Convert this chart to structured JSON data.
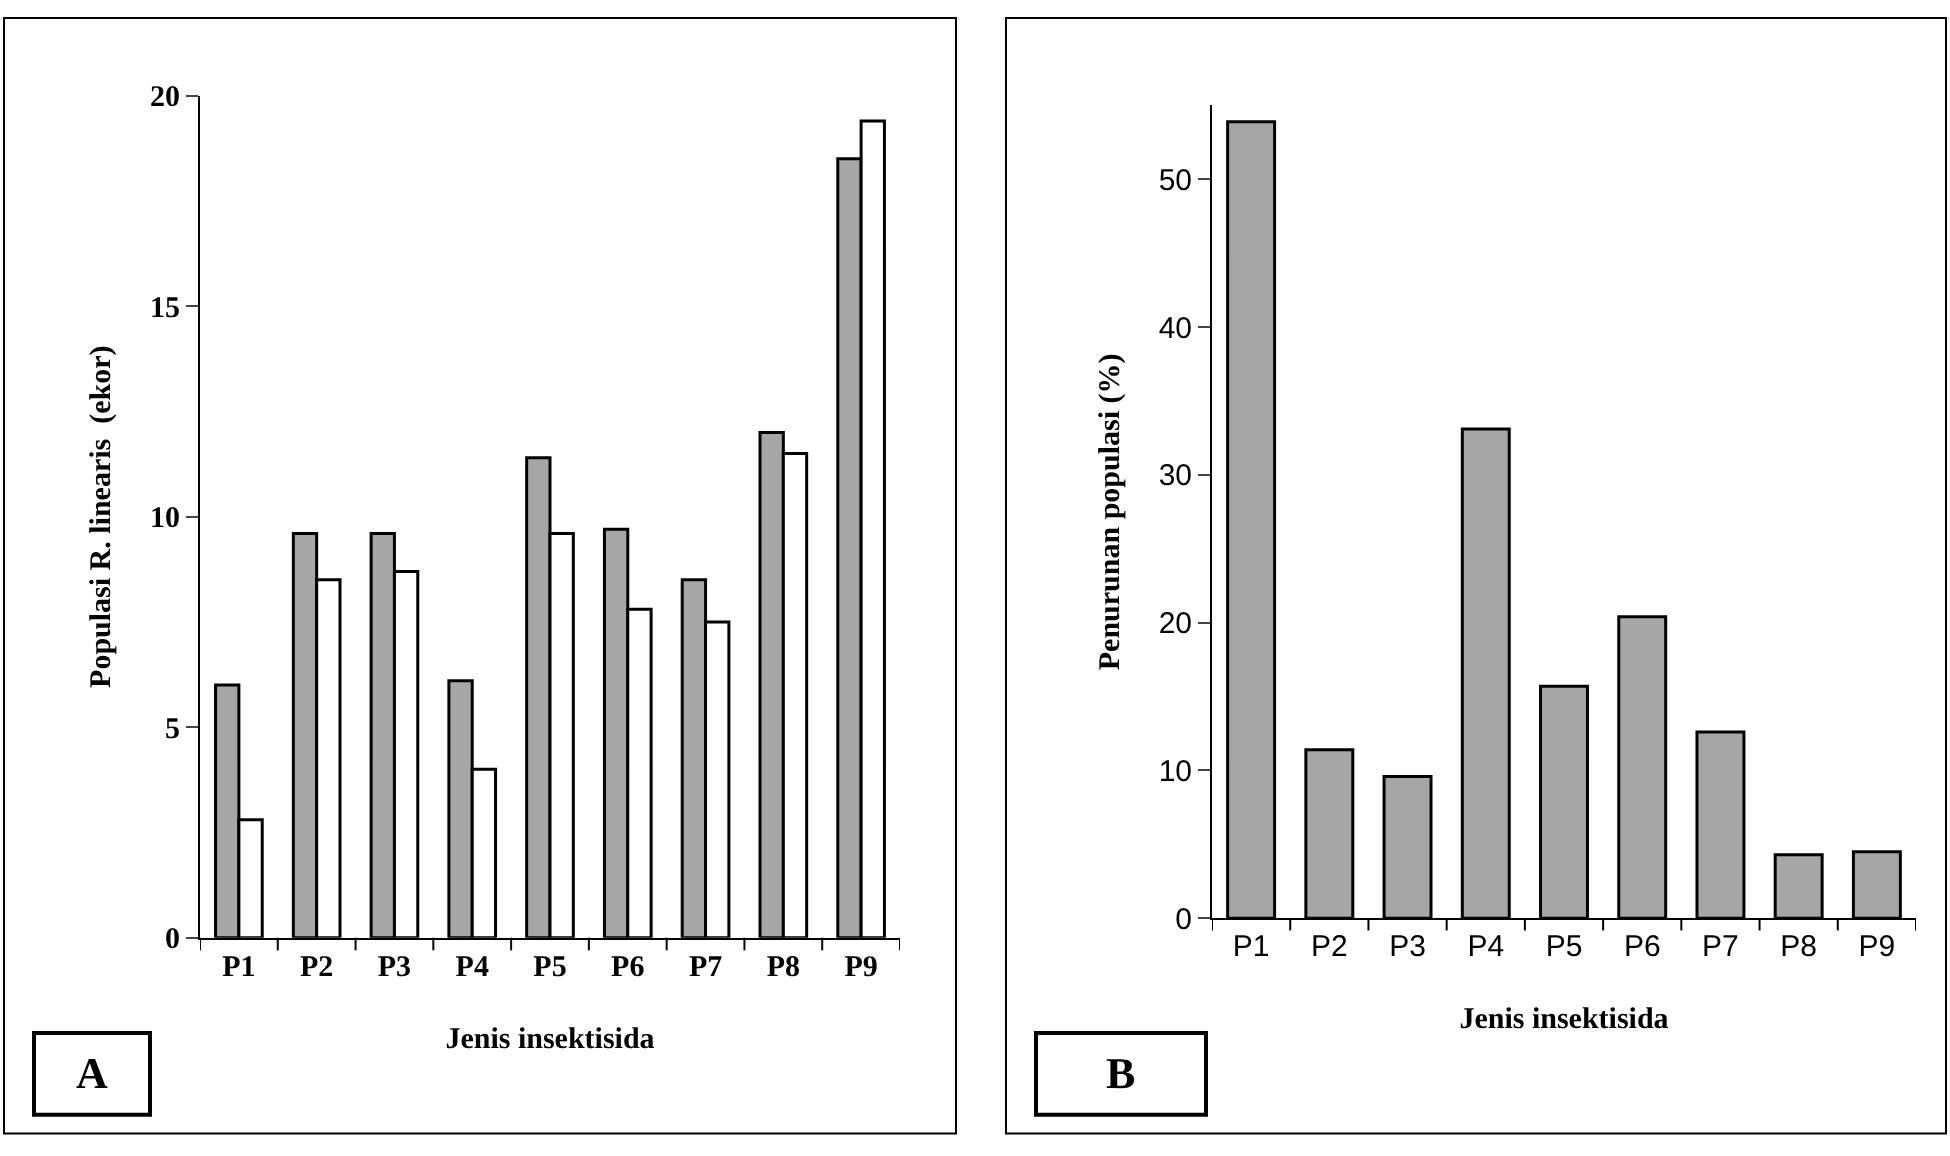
{
  "chart_data": [
    {
      "type": "bar",
      "xlabel": "Jenis insektisida",
      "ylabel": "Populasi R. linearis  (ekor)",
      "annotations": [
        "A"
      ],
      "categories": [
        "P1",
        "P2",
        "P3",
        "P4",
        "P5",
        "P6",
        "P7",
        "P8",
        "P9"
      ],
      "series": [
        {
          "color": "#a6a6a6",
          "values": [
            6.0,
            9.6,
            9.6,
            6.1,
            11.4,
            9.7,
            8.5,
            12.0,
            18.5
          ]
        },
        {
          "color": "#ffffff",
          "values": [
            2.8,
            8.5,
            8.7,
            4.0,
            9.6,
            7.8,
            7.5,
            11.5,
            19.4
          ]
        }
      ],
      "ylim": [
        0,
        20
      ],
      "yticks": [
        0,
        5,
        10,
        15,
        20
      ]
    },
    {
      "type": "bar",
      "xlabel": "Jenis insektisida",
      "ylabel": "Penurunan populasi (%)",
      "annotations": [
        "B"
      ],
      "categories": [
        "P1",
        "P2",
        "P3",
        "P4",
        "P5",
        "P6",
        "P7",
        "P8",
        "P9"
      ],
      "series": [
        {
          "color": "#a6a6a6",
          "values": [
            53.9,
            11.4,
            9.6,
            33.1,
            15.7,
            20.4,
            12.6,
            4.3,
            4.5
          ]
        }
      ],
      "ylim": [
        0,
        55
      ],
      "yticks": [
        0,
        10,
        20,
        30,
        40,
        50
      ]
    }
  ]
}
